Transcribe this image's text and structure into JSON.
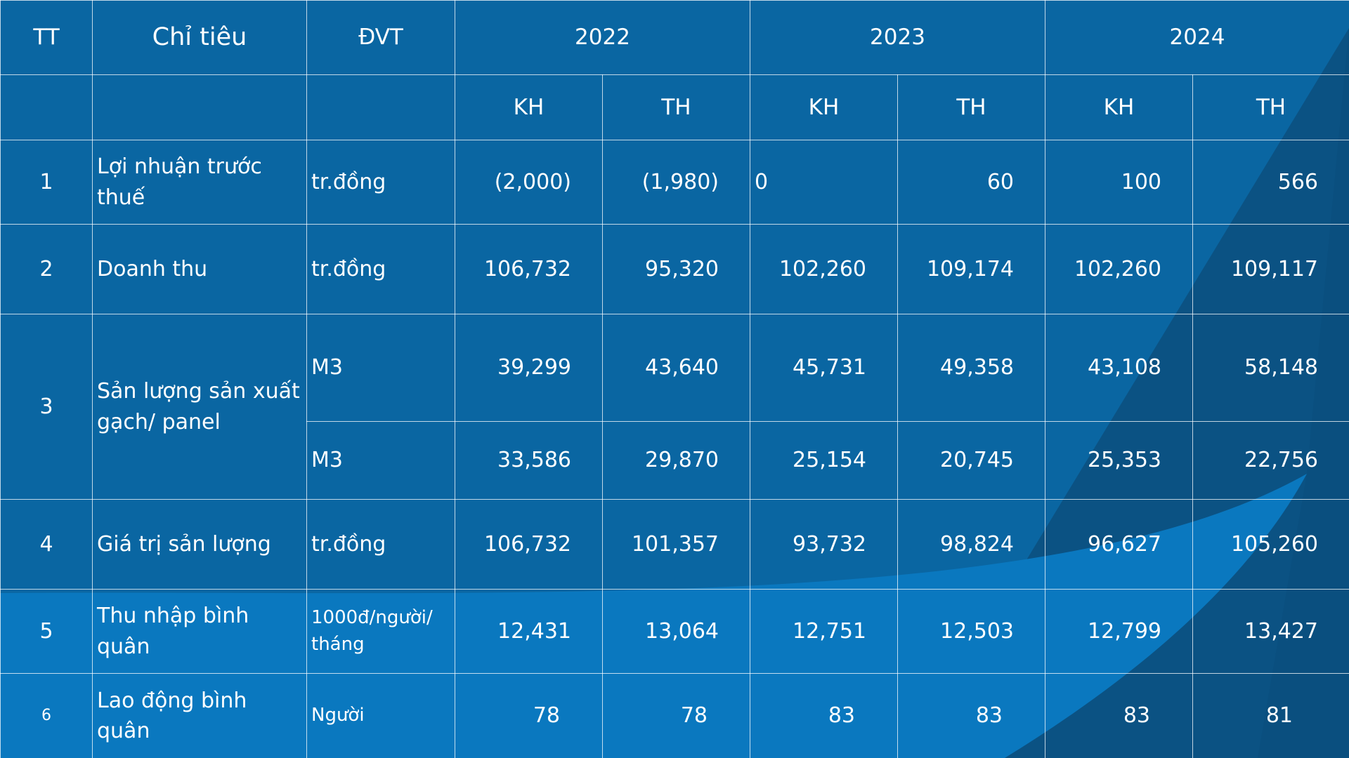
{
  "table": {
    "header": {
      "tt": "TT",
      "indicator": "Chỉ tiêu",
      "unit": "ĐVT",
      "years": [
        "2022",
        "2023",
        "2024"
      ],
      "sub": [
        "KH",
        "TH",
        "KH",
        "TH",
        "KH",
        "TH"
      ]
    },
    "rows": [
      {
        "tt": "1",
        "indicator": "Lợi nhuận trước thuế",
        "unit": "tr.đồng",
        "values": [
          "(2,000)",
          "(1,980)",
          "0",
          "60",
          "100",
          "566"
        ]
      },
      {
        "tt": "2",
        "indicator": "Doanh thu",
        "unit": "tr.đồng",
        "values": [
          "106,732",
          "95,320",
          "102,260",
          "109,174",
          "102,260",
          "109,117"
        ]
      },
      {
        "tt": "3",
        "indicator": "Sản lượng sản xuất gạch/ panel",
        "unit_a": "M3",
        "values_a": [
          "39,299",
          "43,640",
          "45,731",
          "49,358",
          "43,108",
          "58,148"
        ],
        "unit_b": "M3",
        "values_b": [
          "33,586",
          "29,870",
          "25,154",
          "20,745",
          "25,353",
          "22,756"
        ]
      },
      {
        "tt": "4",
        "indicator": "Giá trị sản lượng",
        "unit": "tr.đồng",
        "values": [
          "106,732",
          "101,357",
          "93,732",
          "98,824",
          "96,627",
          "105,260"
        ]
      },
      {
        "tt": "5",
        "indicator": "Thu nhập bình quân",
        "unit": "1000đ/người/ tháng",
        "values": [
          "12,431",
          "13,064",
          "12,751",
          "12,503",
          "12,799",
          "13,427"
        ]
      },
      {
        "tt": "6",
        "indicator": "Lao động bình quân",
        "unit": "Người",
        "values": [
          "78",
          "78",
          "83",
          "83",
          "83",
          "81"
        ]
      }
    ]
  },
  "colors": {
    "background": "#0a69a5",
    "dark_band": "#0b4f7e",
    "light_wave": "#0b7cc4",
    "grid": "#ffffff"
  }
}
